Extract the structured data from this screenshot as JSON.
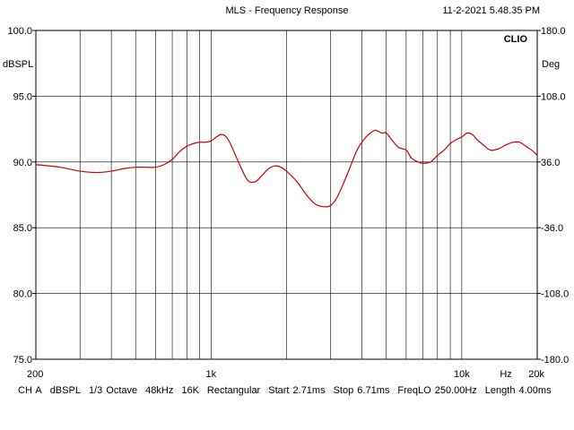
{
  "header": {
    "title": "MLS - Frequency Response",
    "datetime": "11-2-2021 5.48.35 PM"
  },
  "brand": "CLIO",
  "status_bar": {
    "items": [
      "CH A",
      "dBSPL",
      "1/3 Octave",
      "48kHz",
      "16K",
      "Rectangular",
      "Start 2.71ms",
      "Stop 6.71ms",
      "FreqLO 250.00Hz",
      "Length 4.00ms"
    ]
  },
  "chart_data": {
    "type": "line",
    "xscale": "log",
    "xlim": [
      200,
      20000
    ],
    "x_ticks": [
      {
        "value": 200,
        "label": "200"
      },
      {
        "value": 1000,
        "label": "1k"
      },
      {
        "value": 10000,
        "label": "10k"
      },
      {
        "value": 20000,
        "label": "20k"
      }
    ],
    "x_unit_label": "Hz",
    "ylabel": "dBSPL",
    "ylim": [
      75,
      100
    ],
    "y_ticks": [
      "75.0",
      "80.0",
      "85.0",
      "90.0",
      "95.0",
      "100.0"
    ],
    "y2label": "Deg",
    "y2lim": [
      -180,
      180
    ],
    "y2_ticks": [
      "-180.0",
      "-108.0",
      "-36.0",
      "36.0",
      "108.0",
      "180.0"
    ],
    "grid": true,
    "series": [
      {
        "color": "#cc0000",
        "x": [
          200,
          250,
          300,
          350,
          400,
          450,
          500,
          550,
          600,
          650,
          700,
          750,
          800,
          850,
          900,
          950,
          1000,
          1050,
          1100,
          1150,
          1200,
          1300,
          1400,
          1500,
          1600,
          1700,
          1800,
          1900,
          2000,
          2200,
          2400,
          2600,
          2800,
          3000,
          3200,
          3500,
          3800,
          4000,
          4200,
          4500,
          4800,
          5000,
          5300,
          5600,
          6000,
          6300,
          6700,
          7000,
          7500,
          8000,
          8500,
          9000,
          9500,
          10000,
          10500,
          11000,
          11500,
          12000,
          13000,
          14000,
          15000,
          16000,
          17000,
          18000,
          19000,
          20000
        ],
        "y": [
          89.8,
          89.6,
          89.3,
          89.2,
          89.3,
          89.5,
          89.6,
          89.6,
          89.6,
          89.8,
          90.2,
          90.8,
          91.2,
          91.4,
          91.5,
          91.5,
          91.6,
          91.9,
          92.1,
          91.9,
          91.3,
          89.8,
          88.6,
          88.5,
          89.0,
          89.5,
          89.7,
          89.6,
          89.3,
          88.5,
          87.5,
          86.8,
          86.6,
          86.7,
          87.4,
          89.1,
          90.8,
          91.5,
          92.0,
          92.4,
          92.2,
          92.2,
          91.6,
          91.1,
          90.9,
          90.3,
          90.0,
          89.9,
          90.0,
          90.5,
          90.9,
          91.4,
          91.7,
          91.9,
          92.2,
          92.1,
          91.7,
          91.4,
          90.9,
          91.0,
          91.3,
          91.5,
          91.5,
          91.2,
          90.9,
          90.5
        ]
      }
    ]
  }
}
